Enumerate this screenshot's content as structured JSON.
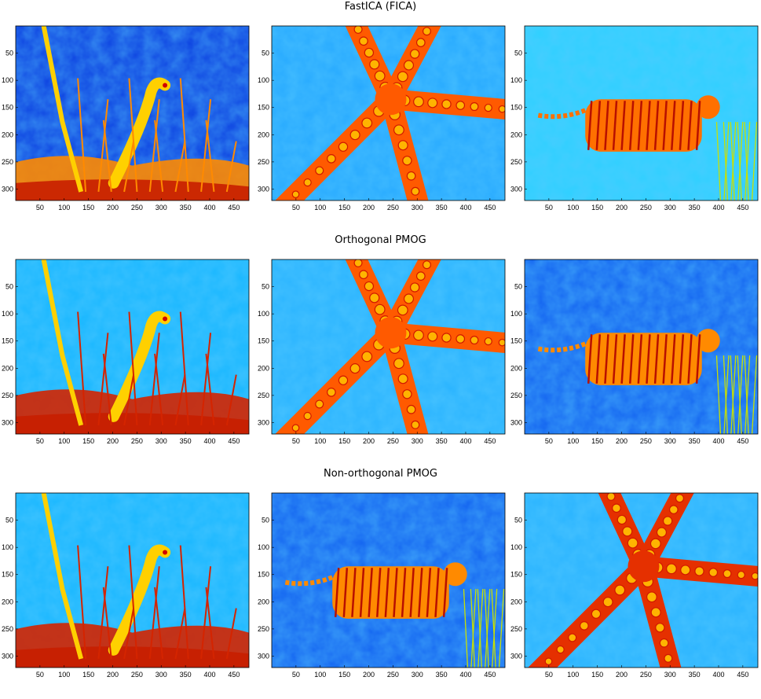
{
  "figure": {
    "rows": [
      {
        "title": "FastICA (FICA)",
        "panels": [
          {
            "content": "heron",
            "palette": "jet",
            "background": "#0b3fe0",
            "foreground": "#ff8a00"
          },
          {
            "content": "starfish",
            "palette": "jet",
            "background": "#26a9ff",
            "foreground": "#ff5a00"
          },
          {
            "content": "tiger",
            "palette": "jet",
            "background": "#2fd0ff",
            "foreground": "#ff7000"
          }
        ]
      },
      {
        "title": "Orthogonal PMOG",
        "panels": [
          {
            "content": "heron",
            "palette": "jet",
            "background": "#19b7ff",
            "foreground": "#d42400"
          },
          {
            "content": "starfish",
            "palette": "jet",
            "background": "#2ab4ff",
            "foreground": "#ff5a00"
          },
          {
            "content": "tiger",
            "palette": "jet",
            "background": "#1262f0",
            "foreground": "#ff8a00"
          }
        ]
      },
      {
        "title": "Non-orthogonal PMOG",
        "panels": [
          {
            "content": "heron",
            "palette": "jet",
            "background": "#19b7ff",
            "foreground": "#d42400"
          },
          {
            "content": "tiger",
            "palette": "jet",
            "background": "#1262f0",
            "foreground": "#ff8a00"
          },
          {
            "content": "starfish",
            "palette": "jet",
            "background": "#2ab4ff",
            "foreground": "#e53000"
          }
        ]
      }
    ],
    "x_ticks": [
      50,
      100,
      150,
      200,
      250,
      300,
      350,
      400,
      450
    ],
    "y_ticks": [
      50,
      100,
      150,
      200,
      250,
      300
    ],
    "x_range": [
      0,
      481
    ],
    "y_range": [
      0,
      321
    ]
  }
}
